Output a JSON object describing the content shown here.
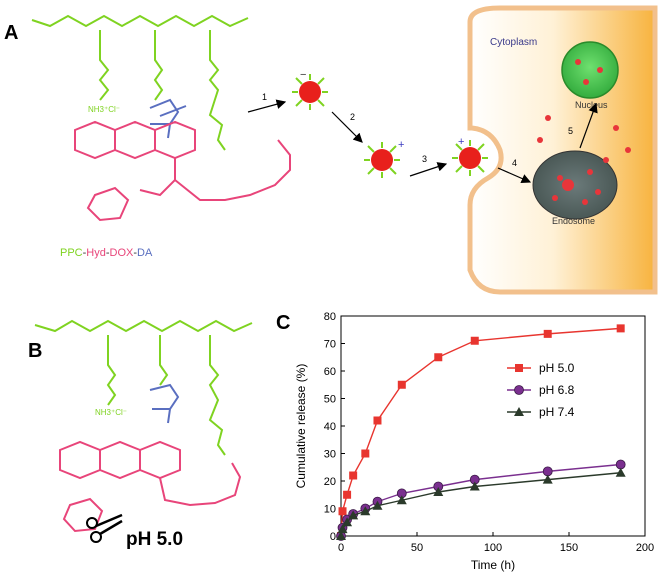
{
  "panels": {
    "a": "A",
    "b": "B",
    "c": "C"
  },
  "scheme": {
    "compound": [
      "PPC",
      "-",
      "Hyd",
      "-",
      "DOX",
      "-",
      "DA"
    ],
    "compound_colors": [
      "#7fd321",
      "#333333",
      "#e8457a",
      "#333333",
      "#e8457a",
      "#333333",
      "#5a6fc0"
    ],
    "steps": [
      "1",
      "2",
      "3",
      "4",
      "5"
    ],
    "cytoplasm": "Cytoplasm",
    "nucleus": "Nucleus",
    "endosome": "Endosome",
    "nh3": "NH3⁺Cl⁻",
    "charge_minus": "−",
    "charge_plus": "+"
  },
  "panel_b": {
    "cleave_label": "pH 5.0"
  },
  "chart_data": {
    "type": "line",
    "xlabel": "Time (h)",
    "ylabel": "Cumulative release (%)",
    "xlim": [
      0,
      200
    ],
    "ylim": [
      0,
      80
    ],
    "xticks": [
      0,
      50,
      100,
      150,
      200
    ],
    "yticks": [
      0,
      10,
      20,
      30,
      40,
      50,
      60,
      70,
      80
    ],
    "legend_position": "right",
    "series": [
      {
        "name": "pH 5.0",
        "color": "#e8352f",
        "marker": "square",
        "x": [
          0,
          1,
          4,
          8,
          16,
          24,
          40,
          64,
          88,
          136,
          184
        ],
        "y": [
          0,
          9,
          15,
          22,
          30,
          42,
          55,
          65,
          71,
          73.5,
          75.5
        ]
      },
      {
        "name": "pH 6.8",
        "color": "#7a2f8f",
        "marker": "circle",
        "x": [
          0,
          1,
          4,
          8,
          16,
          24,
          40,
          64,
          88,
          136,
          184
        ],
        "y": [
          0,
          3,
          6,
          8,
          10,
          12.5,
          15.5,
          18,
          20.5,
          23.5,
          26
        ]
      },
      {
        "name": "pH 7.4",
        "color": "#2b3a2b",
        "marker": "triangle",
        "x": [
          0,
          1,
          4,
          8,
          16,
          24,
          40,
          64,
          88,
          136,
          184
        ],
        "y": [
          0,
          2.5,
          5,
          7.5,
          9,
          11,
          13,
          16,
          18,
          20.5,
          23
        ]
      }
    ]
  }
}
